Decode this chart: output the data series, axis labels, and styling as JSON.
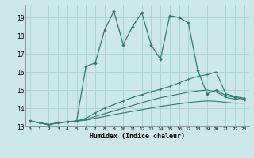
{
  "xlabel": "Humidex (Indice chaleur)",
  "xlim": [
    -0.5,
    23.5
  ],
  "ylim": [
    13.0,
    19.7
  ],
  "yticks": [
    13,
    14,
    15,
    16,
    17,
    18,
    19
  ],
  "xticks": [
    0,
    1,
    2,
    3,
    4,
    5,
    6,
    7,
    8,
    9,
    10,
    11,
    12,
    13,
    14,
    15,
    16,
    17,
    18,
    19,
    20,
    21,
    22,
    23
  ],
  "background_color": "#cce8e8",
  "grid_color": "#add4d4",
  "line_color": "#2d7a6a",
  "line1_x": [
    0,
    1,
    2,
    3,
    4,
    5,
    6,
    7,
    8,
    9,
    10,
    11,
    12,
    13,
    14,
    15,
    16,
    17,
    18,
    19,
    20,
    21,
    22,
    23
  ],
  "line1_y": [
    13.3,
    13.2,
    13.1,
    13.2,
    13.25,
    13.3,
    16.3,
    16.5,
    18.3,
    19.35,
    17.5,
    18.5,
    19.25,
    17.5,
    16.7,
    19.1,
    19.0,
    18.7,
    16.1,
    14.8,
    15.0,
    14.7,
    14.6,
    14.5
  ],
  "line2_x": [
    0,
    1,
    2,
    3,
    4,
    5,
    6,
    7,
    8,
    9,
    10,
    11,
    12,
    13,
    14,
    15,
    16,
    17,
    18,
    19,
    20,
    21,
    22,
    23
  ],
  "line2_y": [
    13.3,
    13.2,
    13.1,
    13.2,
    13.25,
    13.3,
    13.45,
    13.75,
    14.0,
    14.2,
    14.4,
    14.6,
    14.75,
    14.9,
    15.05,
    15.2,
    15.4,
    15.6,
    15.75,
    15.85,
    16.0,
    14.8,
    14.65,
    14.55
  ],
  "line3_x": [
    0,
    1,
    2,
    3,
    4,
    5,
    6,
    7,
    8,
    9,
    10,
    11,
    12,
    13,
    14,
    15,
    16,
    17,
    18,
    19,
    20,
    21,
    22,
    23
  ],
  "line3_y": [
    13.3,
    13.2,
    13.1,
    13.2,
    13.25,
    13.3,
    13.38,
    13.55,
    13.7,
    13.85,
    14.0,
    14.15,
    14.3,
    14.45,
    14.58,
    14.68,
    14.78,
    14.88,
    14.95,
    15.0,
    14.9,
    14.6,
    14.5,
    14.45
  ],
  "line4_x": [
    0,
    1,
    2,
    3,
    4,
    5,
    6,
    7,
    8,
    9,
    10,
    11,
    12,
    13,
    14,
    15,
    16,
    17,
    18,
    19,
    20,
    21,
    22,
    23
  ],
  "line4_y": [
    13.3,
    13.2,
    13.1,
    13.2,
    13.25,
    13.3,
    13.34,
    13.45,
    13.55,
    13.65,
    13.74,
    13.83,
    13.92,
    14.01,
    14.1,
    14.17,
    14.24,
    14.31,
    14.36,
    14.4,
    14.38,
    14.32,
    14.28,
    14.28
  ]
}
